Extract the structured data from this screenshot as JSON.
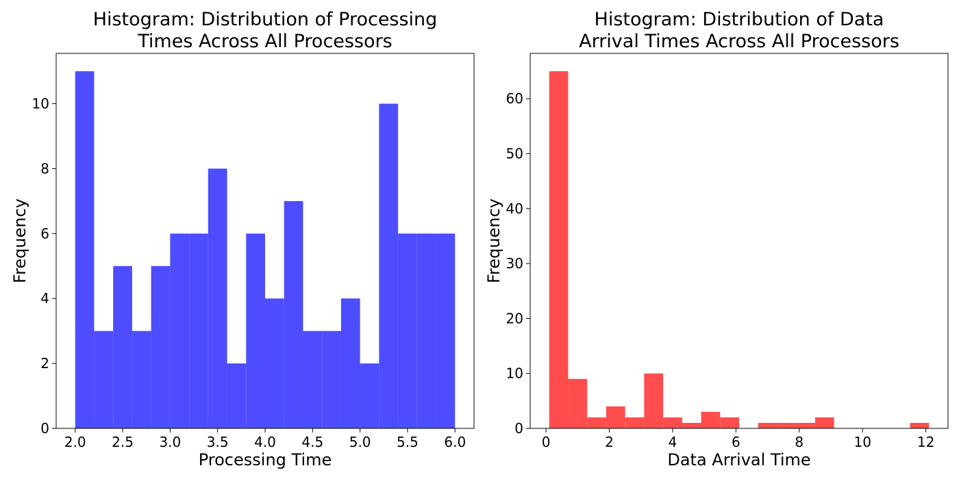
{
  "chart_data": [
    {
      "type": "bar",
      "title": [
        "Histogram: Distribution of Processing",
        "Times Across All Processors"
      ],
      "xlabel": "Processing Time",
      "ylabel": "Frequency",
      "color": "#4d4dff",
      "xlim": [
        1.8,
        6.2
      ],
      "ylim": [
        0,
        11.55
      ],
      "xticks": [
        2.0,
        2.5,
        3.0,
        3.5,
        4.0,
        4.5,
        5.0,
        5.5,
        6.0
      ],
      "xtick_labels": [
        "2.0",
        "2.5",
        "3.0",
        "3.5",
        "4.0",
        "4.5",
        "5.0",
        "5.5",
        "6.0"
      ],
      "yticks": [
        0,
        2,
        4,
        6,
        8,
        10
      ],
      "ytick_labels": [
        "0",
        "2",
        "4",
        "6",
        "8",
        "10"
      ],
      "bins": [
        {
          "x0": 2.0,
          "x1": 2.2,
          "value": 11
        },
        {
          "x0": 2.2,
          "x1": 2.4,
          "value": 3
        },
        {
          "x0": 2.4,
          "x1": 2.6,
          "value": 5
        },
        {
          "x0": 2.6,
          "x1": 2.8,
          "value": 3
        },
        {
          "x0": 2.8,
          "x1": 3.0,
          "value": 5
        },
        {
          "x0": 3.0,
          "x1": 3.2,
          "value": 6
        },
        {
          "x0": 3.2,
          "x1": 3.4,
          "value": 6
        },
        {
          "x0": 3.4,
          "x1": 3.6,
          "value": 8
        },
        {
          "x0": 3.6,
          "x1": 3.8,
          "value": 2
        },
        {
          "x0": 3.8,
          "x1": 4.0,
          "value": 6
        },
        {
          "x0": 4.0,
          "x1": 4.2,
          "value": 4
        },
        {
          "x0": 4.2,
          "x1": 4.4,
          "value": 7
        },
        {
          "x0": 4.4,
          "x1": 4.6,
          "value": 3
        },
        {
          "x0": 4.6,
          "x1": 4.8,
          "value": 3
        },
        {
          "x0": 4.8,
          "x1": 5.0,
          "value": 4
        },
        {
          "x0": 5.0,
          "x1": 5.2,
          "value": 2
        },
        {
          "x0": 5.2,
          "x1": 5.4,
          "value": 10
        },
        {
          "x0": 5.4,
          "x1": 5.6,
          "value": 6
        },
        {
          "x0": 5.6,
          "x1": 5.8,
          "value": 6
        },
        {
          "x0": 5.8,
          "x1": 6.0,
          "value": 6
        }
      ]
    },
    {
      "type": "bar",
      "title": [
        "Histogram: Distribution of Data",
        "Arrival Times Across All Processors"
      ],
      "xlabel": "Data Arrival Time",
      "ylabel": "Frequency",
      "color": "#ff4d4d",
      "xlim": [
        -0.5,
        12.7
      ],
      "ylim": [
        0,
        68.25
      ],
      "xticks": [
        0,
        2,
        4,
        6,
        8,
        10,
        12
      ],
      "xtick_labels": [
        "0",
        "2",
        "4",
        "6",
        "8",
        "10",
        "12"
      ],
      "yticks": [
        0,
        10,
        20,
        30,
        40,
        50,
        60
      ],
      "ytick_labels": [
        "0",
        "10",
        "20",
        "30",
        "40",
        "50",
        "60"
      ],
      "bins": [
        {
          "x0": 0.1,
          "x1": 0.7,
          "value": 65
        },
        {
          "x0": 0.7,
          "x1": 1.3,
          "value": 9
        },
        {
          "x0": 1.3,
          "x1": 1.9,
          "value": 2
        },
        {
          "x0": 1.9,
          "x1": 2.5,
          "value": 4
        },
        {
          "x0": 2.5,
          "x1": 3.1,
          "value": 2
        },
        {
          "x0": 3.1,
          "x1": 3.7,
          "value": 10
        },
        {
          "x0": 3.7,
          "x1": 4.3,
          "value": 2
        },
        {
          "x0": 4.3,
          "x1": 4.9,
          "value": 1
        },
        {
          "x0": 4.9,
          "x1": 5.5,
          "value": 3
        },
        {
          "x0": 5.5,
          "x1": 6.1,
          "value": 2
        },
        {
          "x0": 6.1,
          "x1": 6.7,
          "value": 0
        },
        {
          "x0": 6.7,
          "x1": 7.3,
          "value": 1
        },
        {
          "x0": 7.3,
          "x1": 7.9,
          "value": 1
        },
        {
          "x0": 7.9,
          "x1": 8.5,
          "value": 1
        },
        {
          "x0": 8.5,
          "x1": 9.1,
          "value": 2
        },
        {
          "x0": 9.1,
          "x1": 9.7,
          "value": 0
        },
        {
          "x0": 9.7,
          "x1": 10.3,
          "value": 0
        },
        {
          "x0": 10.3,
          "x1": 10.9,
          "value": 0
        },
        {
          "x0": 10.9,
          "x1": 11.5,
          "value": 0
        },
        {
          "x0": 11.5,
          "x1": 12.1,
          "value": 1
        }
      ]
    }
  ]
}
